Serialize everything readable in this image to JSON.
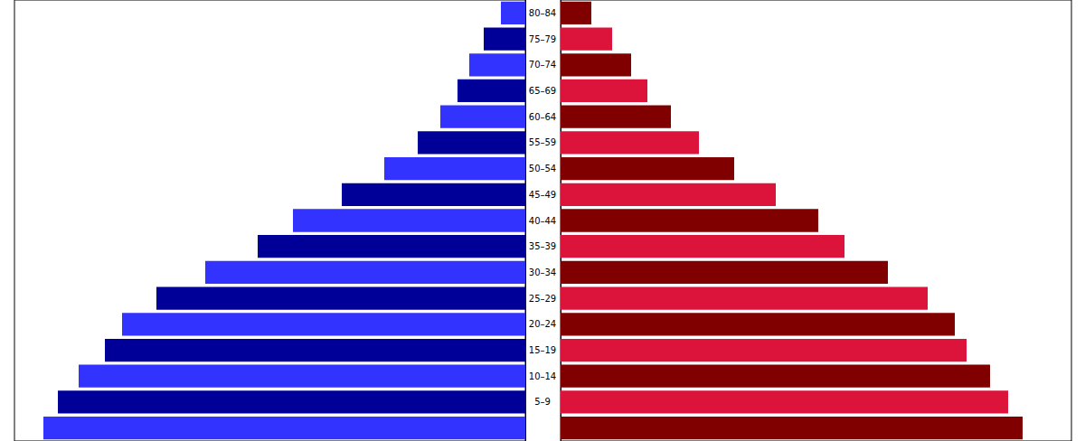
{
  "chart_data": {
    "type": "bar",
    "orientation": "horizontal",
    "categories": [
      "80–84",
      "75–79",
      "70–74",
      "65–69",
      "60–64",
      "55–59",
      "50–54",
      "45–49",
      "40–44",
      "35–39",
      "30–34",
      "25–29",
      "20–24",
      "15–19",
      "10–14",
      "5–9",
      null
    ],
    "series": [
      {
        "values": [
          0.27,
          0.46,
          0.62,
          0.75,
          0.94,
          1.19,
          1.56,
          2.03,
          2.57,
          2.96,
          3.54,
          4.08,
          4.46,
          4.65,
          4.94,
          5.17,
          5.33
        ],
        "colors": [
          "#3333ff",
          "#000099",
          "#3333ff",
          "#000099",
          "#3333ff",
          "#000099",
          "#3333ff",
          "#000099",
          "#3333ff",
          "#000099",
          "#3333ff",
          "#000099",
          "#3333ff",
          "#000099",
          "#3333ff",
          "#000099",
          "#3333ff"
        ]
      },
      {
        "values": [
          0.34,
          0.57,
          0.78,
          0.96,
          1.22,
          1.53,
          1.92,
          2.38,
          2.85,
          3.14,
          3.62,
          4.06,
          4.36,
          4.49,
          4.75,
          4.95,
          5.11
        ],
        "colors": [
          "#800000",
          "#dc143c",
          "#800000",
          "#dc143c",
          "#800000",
          "#dc143c",
          "#800000",
          "#dc143c",
          "#800000",
          "#dc143c",
          "#800000",
          "#dc143c",
          "#800000",
          "#dc143c",
          "#800000",
          "#dc143c",
          "#800000"
        ]
      }
    ],
    "xlim": [
      0,
      5.65
    ],
    "grid": false,
    "tick_labels": false
  }
}
